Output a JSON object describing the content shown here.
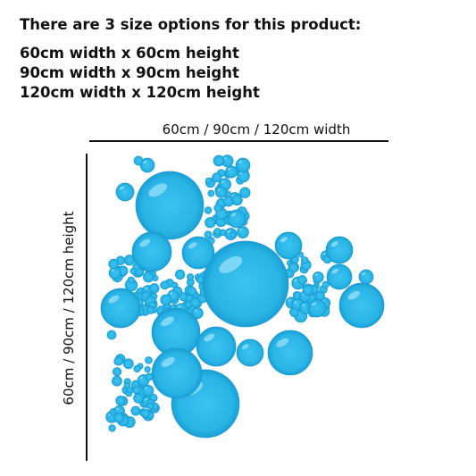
{
  "header": {
    "title": "There are 3 size options for this product:",
    "options": [
      "60cm width x 60cm height",
      "90cm width x 90cm height",
      "120cm width x 120cm height"
    ]
  },
  "diagram": {
    "width_label": "60cm / 90cm / 120cm width",
    "height_label": "60cm / 90cm / 120cm height"
  }
}
